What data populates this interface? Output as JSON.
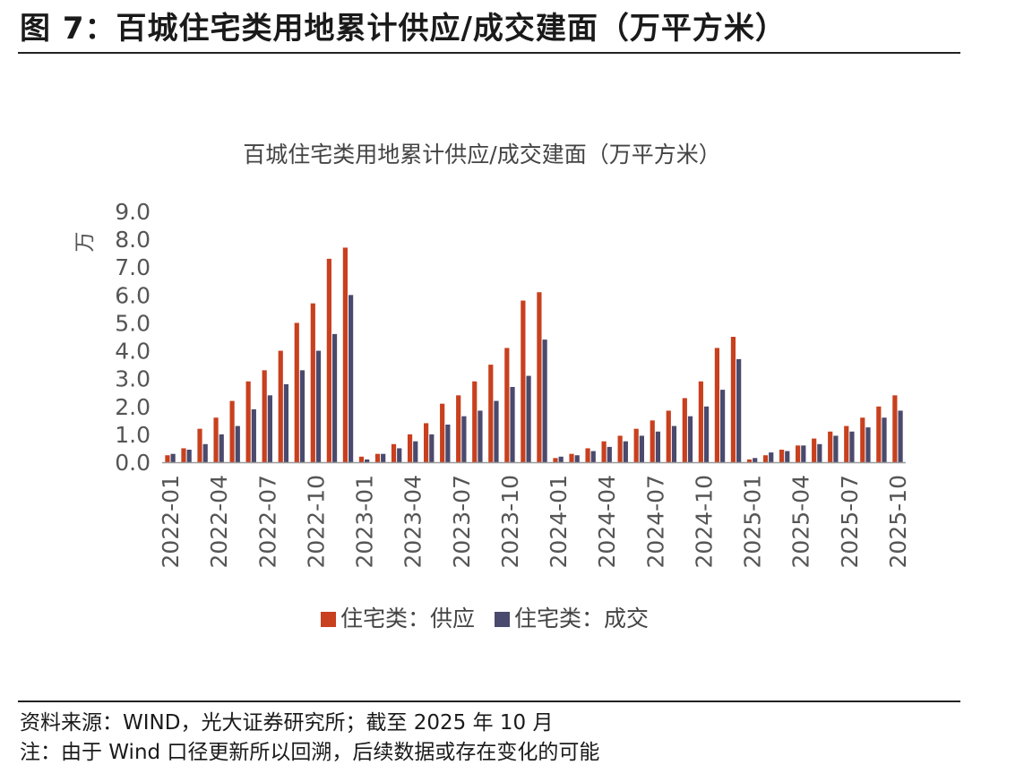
{
  "figure": {
    "title": "图 7：百城住宅类用地累计供应/成交建面（万平方米）",
    "source": "资料来源：WIND，光大证券研究所；截至 2025 年 10 月",
    "note": "注：由于 Wind 口径更新所以回溯，后续数据或存在变化的可能"
  },
  "colors": {
    "supply": "#c8401e",
    "deal": "#4a4a6e",
    "axis": "#999999"
  },
  "chart_data": {
    "type": "bar",
    "title": "百城住宅类用地累计供应/成交建面（万平方米）",
    "ylabel": "万",
    "ylim": [
      0,
      9
    ],
    "yticks": [
      "0.0",
      "1.0",
      "2.0",
      "3.0",
      "4.0",
      "5.0",
      "6.0",
      "7.0",
      "8.0",
      "9.0"
    ],
    "grid": false,
    "legend_position": "bottom",
    "categories": [
      "2022-01",
      "2022-02",
      "2022-03",
      "2022-04",
      "2022-05",
      "2022-06",
      "2022-07",
      "2022-08",
      "2022-09",
      "2022-10",
      "2022-11",
      "2022-12",
      "2023-01",
      "2023-02",
      "2023-03",
      "2023-04",
      "2023-05",
      "2023-06",
      "2023-07",
      "2023-08",
      "2023-09",
      "2023-10",
      "2023-11",
      "2023-12",
      "2024-01",
      "2024-02",
      "2024-03",
      "2024-04",
      "2024-05",
      "2024-06",
      "2024-07",
      "2024-08",
      "2024-09",
      "2024-10",
      "2024-11",
      "2024-12",
      "2025-01",
      "2025-02",
      "2025-03",
      "2025-04",
      "2025-05",
      "2025-06",
      "2025-07",
      "2025-08",
      "2025-09",
      "2025-10"
    ],
    "tick_labels": [
      "2022-01",
      "2022-04",
      "2022-07",
      "2022-10",
      "2023-01",
      "2023-04",
      "2023-07",
      "2023-10",
      "2024-01",
      "2024-04",
      "2024-07",
      "2024-10",
      "2025-01",
      "2025-04",
      "2025-07",
      "2025-10"
    ],
    "series": [
      {
        "name": "住宅类：供应",
        "values": [
          0.25,
          0.5,
          1.2,
          1.6,
          2.2,
          2.9,
          3.3,
          4.0,
          5.0,
          5.7,
          7.3,
          7.7,
          0.2,
          0.3,
          0.65,
          1.0,
          1.4,
          2.1,
          2.4,
          2.9,
          3.5,
          4.1,
          5.8,
          6.1,
          0.15,
          0.3,
          0.5,
          0.75,
          0.95,
          1.2,
          1.5,
          1.85,
          2.3,
          2.9,
          4.1,
          4.5,
          0.1,
          0.25,
          0.45,
          0.6,
          0.85,
          1.1,
          1.3,
          1.6,
          2.0,
          2.4
        ]
      },
      {
        "name": "住宅类：成交",
        "values": [
          0.3,
          0.45,
          0.65,
          1.0,
          1.3,
          1.9,
          2.4,
          2.8,
          3.3,
          4.0,
          4.6,
          6.0,
          0.1,
          0.3,
          0.5,
          0.75,
          1.0,
          1.35,
          1.65,
          1.85,
          2.2,
          2.7,
          3.1,
          4.4,
          0.2,
          0.25,
          0.4,
          0.55,
          0.75,
          0.95,
          1.1,
          1.3,
          1.65,
          2.0,
          2.6,
          3.7,
          0.15,
          0.35,
          0.4,
          0.6,
          0.65,
          0.95,
          1.1,
          1.25,
          1.6,
          1.85
        ]
      }
    ]
  }
}
